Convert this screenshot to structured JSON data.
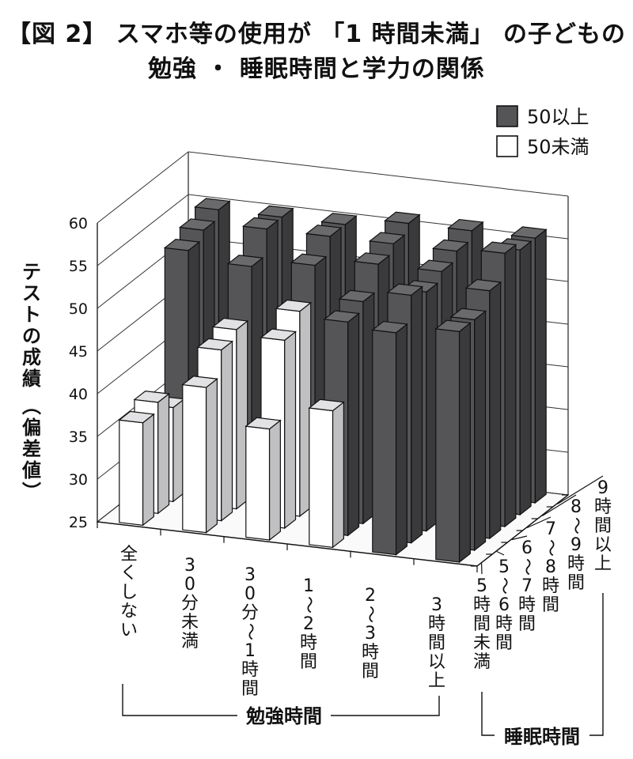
{
  "chart_data": {
    "type": "bar",
    "title": "【図 2】 スマホ等の使用が 「1 時間未満」 の子どもの",
    "subtitle": "勉強 ・ 睡眠時間と学力の関係",
    "ylabel": "テストの成績 （偏差値）",
    "xlabel": "勉強時間",
    "zlabel": "睡眠時間",
    "ylim": [
      25,
      60
    ],
    "yticks": [
      "25",
      "30",
      "35",
      "40",
      "45",
      "50",
      "55",
      "60"
    ],
    "categories": [
      "全くしない",
      "30分未満",
      "30分〜1時間",
      "1〜2時間",
      "2〜3時間",
      "3時間以上"
    ],
    "depth_categories": [
      "5時間未満",
      "5〜6時間",
      "6〜7時間",
      "7〜8時間",
      "8〜9時間",
      "9時間以上"
    ],
    "legend": [
      {
        "name": "50以上",
        "color": "#555558"
      },
      {
        "name": "50未満",
        "color": "#ffffff"
      }
    ],
    "values": [
      [
        37,
        42,
        38,
        41,
        51,
        52
      ],
      [
        38,
        45,
        47,
        50,
        54,
        52
      ],
      [
        36,
        46,
        49,
        51,
        53,
        54
      ],
      [
        53,
        52,
        53,
        54,
        54,
        57
      ],
      [
        54,
        55,
        55,
        55,
        55,
        56
      ],
      [
        55,
        55,
        55,
        56,
        56,
        56
      ]
    ]
  }
}
